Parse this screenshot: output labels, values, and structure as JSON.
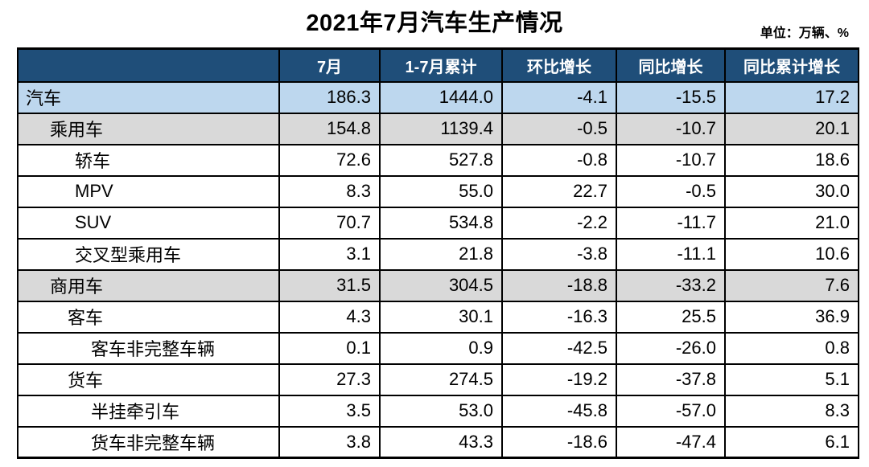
{
  "title": "2021年7月汽车生产情况",
  "unit_label": "单位：万辆、%",
  "colors": {
    "header_bg": "#1F4E79",
    "header_text": "#FFFFFF",
    "row_highlight_blue": "#BDD7EE",
    "row_highlight_gray": "#D9D9D9",
    "border": "#000000"
  },
  "chart_data": {
    "type": "table",
    "title": "2021年7月汽车生产情况",
    "unit": "单位：万辆、%",
    "columns": [
      "",
      "7月",
      "1-7月累计",
      "环比增长",
      "同比增长",
      "同比累计增长"
    ],
    "rows": [
      {
        "label": "汽车",
        "indent": 0,
        "style": "blue",
        "values": [
          "186.3",
          "1444.0",
          "-4.1",
          "-15.5",
          "17.2"
        ]
      },
      {
        "label": "乘用车",
        "indent": 1,
        "style": "gray",
        "values": [
          "154.8",
          "1139.4",
          "-0.5",
          "-10.7",
          "20.1"
        ]
      },
      {
        "label": "轿车",
        "indent": 3,
        "style": "white",
        "values": [
          "72.6",
          "527.8",
          "-0.8",
          "-10.7",
          "18.6"
        ]
      },
      {
        "label": "MPV",
        "indent": 3,
        "style": "white",
        "values": [
          "8.3",
          "55.0",
          "22.7",
          "-0.5",
          "30.0"
        ]
      },
      {
        "label": "SUV",
        "indent": 3,
        "style": "white",
        "values": [
          "70.7",
          "534.8",
          "-2.2",
          "-11.7",
          "21.0"
        ]
      },
      {
        "label": "交叉型乘用车",
        "indent": 3,
        "style": "white",
        "values": [
          "3.1",
          "21.8",
          "-3.8",
          "-11.1",
          "10.6"
        ]
      },
      {
        "label": "商用车",
        "indent": 1,
        "style": "gray",
        "values": [
          "31.5",
          "304.5",
          "-18.8",
          "-33.2",
          "7.6"
        ]
      },
      {
        "label": "客车",
        "indent": 2,
        "style": "white",
        "values": [
          "4.3",
          "30.1",
          "-16.3",
          "25.5",
          "36.9"
        ]
      },
      {
        "label": "客车非完整车辆",
        "indent": 4,
        "style": "white",
        "values": [
          "0.1",
          "0.9",
          "-42.5",
          "-26.0",
          "0.8"
        ]
      },
      {
        "label": "货车",
        "indent": 2,
        "style": "white",
        "values": [
          "27.3",
          "274.5",
          "-19.2",
          "-37.8",
          "5.1"
        ]
      },
      {
        "label": "半挂牵引车",
        "indent": 4,
        "style": "white",
        "values": [
          "3.5",
          "53.0",
          "-45.8",
          "-57.0",
          "8.3"
        ]
      },
      {
        "label": "货车非完整车辆",
        "indent": 4,
        "style": "white",
        "values": [
          "3.8",
          "43.3",
          "-18.6",
          "-47.4",
          "6.1"
        ]
      }
    ]
  }
}
